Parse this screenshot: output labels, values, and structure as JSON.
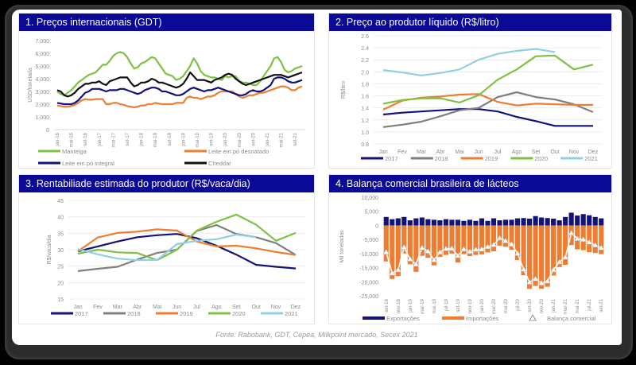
{
  "source_note": "Fonte: Rabobank, GDT, Cepea, Milkpoint mercado, Secex 2021",
  "colors": {
    "title_bar": "#0a0a96",
    "green": "#7dc242",
    "orange": "#ed7d31",
    "navy": "#12127a",
    "black": "#111111",
    "gray": "#7f7f7f",
    "lightblue": "#8fd0e2"
  },
  "chart_data": [
    {
      "type": "line",
      "title": "1. Preços internacionais (GDT)",
      "xlabel": "",
      "ylabel": "USD/tonelada",
      "ylim": [
        0,
        7000
      ],
      "yticks": [
        0,
        1000,
        2000,
        3000,
        4000,
        5000,
        6000,
        7000
      ],
      "ytick_labels": [
        "0",
        "1,000",
        "2,000",
        "3,000",
        "4,000",
        "5,000",
        "6,000",
        "7,000"
      ],
      "x_tick_labels": [
        "jan-16",
        "mai-16",
        "set-16",
        "jan-17",
        "mai-17",
        "set-17",
        "jan-18",
        "mai-18",
        "set-18",
        "jan-19",
        "mai-19",
        "set-19",
        "jan-20",
        "mai-20",
        "set-20",
        "jan-21",
        "mai-21",
        "set-21"
      ],
      "x_points_per_tick": 4,
      "grid": false,
      "legend": "bottom",
      "series": [
        {
          "name": "Manteiga",
          "color": "#7dc242",
          "values": [
            3000,
            2800,
            2700,
            2900,
            3100,
            3400,
            3700,
            3900,
            4100,
            4300,
            4400,
            4500,
            4800,
            5100,
            5100,
            5400,
            5800,
            6000,
            6100,
            6000,
            5700,
            5200,
            4800,
            4900,
            5200,
            5300,
            5500,
            5700,
            5600,
            5200,
            4800,
            4400,
            4300,
            4200,
            3900,
            4000,
            4200,
            4600,
            5000,
            5600,
            5200,
            4600,
            4300,
            4200,
            4100,
            4100,
            4000,
            3900,
            4200,
            4100,
            4200,
            4200,
            3800,
            3700,
            3700,
            3600,
            3500,
            3500,
            3800,
            4200,
            4600,
            5000,
            5600,
            5700,
            5300,
            4700,
            4500,
            4600,
            4800,
            4900,
            5000
          ]
        },
        {
          "name": "Leite em pó desnatado",
          "color": "#ed7d31",
          "values": [
            1900,
            1850,
            1800,
            1800,
            1850,
            1950,
            2100,
            2300,
            2400,
            2350,
            2350,
            2400,
            2400,
            2400,
            2000,
            2000,
            2100,
            2100,
            2000,
            1950,
            1850,
            1800,
            1750,
            1800,
            1900,
            1900,
            2000,
            2000,
            2100,
            2050,
            2000,
            2000,
            2000,
            2000,
            2100,
            2100,
            2100,
            2500,
            2600,
            2500,
            2500,
            2400,
            2500,
            2600,
            2600,
            2700,
            2900,
            3000,
            3000,
            3000,
            3000,
            2800,
            2600,
            2500,
            2600,
            2700,
            2700,
            2800,
            2900,
            2900,
            3000,
            3100,
            3200,
            3300,
            3400,
            3400,
            3300,
            3100,
            3100,
            3300,
            3400
          ]
        },
        {
          "name": "Leite em pó integral",
          "color": "#12127a",
          "values": [
            2100,
            2050,
            2000,
            2000,
            2000,
            2100,
            2300,
            2600,
            2900,
            3000,
            3200,
            3200,
            3200,
            3100,
            3000,
            3100,
            3100,
            3100,
            3200,
            3200,
            3100,
            3000,
            2900,
            2800,
            2900,
            3100,
            3200,
            3300,
            3300,
            3200,
            3000,
            3000,
            2900,
            2800,
            2700,
            2700,
            2800,
            3000,
            3200,
            3300,
            3200,
            3100,
            3000,
            3100,
            3100,
            3200,
            3300,
            3200,
            3100,
            3000,
            2900,
            2800,
            2700,
            2700,
            2800,
            3000,
            3100,
            3000,
            3000,
            3100,
            3300,
            3500,
            4000,
            4100,
            4100,
            4000,
            3800,
            3700,
            3700,
            3800,
            3900
          ]
        },
        {
          "name": "Cheddar",
          "color": "#111111",
          "values": [
            3100,
            3000,
            2700,
            2600,
            2700,
            2900,
            3200,
            3400,
            3600,
            3600,
            3700,
            3700,
            3800,
            3600,
            3500,
            3800,
            3900,
            4000,
            4100,
            4100,
            4100,
            3700,
            3400,
            3500,
            3700,
            3700,
            3800,
            4000,
            3900,
            3700,
            3700,
            3600,
            3500,
            3400,
            3300,
            3400,
            3600,
            4000,
            4500,
            4200,
            3900,
            3900,
            3900,
            3800,
            3700,
            3900,
            4000,
            4100,
            4300,
            4400,
            4300,
            4000,
            3800,
            3600,
            3500,
            3600,
            3700,
            3800,
            3900,
            4000,
            4100,
            4200,
            4300,
            4300,
            4300,
            4200,
            4100,
            4200,
            4300,
            4400,
            4500
          ]
        }
      ]
    },
    {
      "type": "line",
      "title": "2. Preço ao produtor líquido (R$/litro)",
      "xlabel": "",
      "ylabel": "R$/litro",
      "ylim": [
        0.8,
        2.6
      ],
      "yticks": [
        0.8,
        1.0,
        1.2,
        1.4,
        1.6,
        1.8,
        2.0,
        2.2,
        2.4,
        2.6
      ],
      "ytick_labels": [
        "0.8",
        "1.0",
        "1.2",
        "1.4",
        "1.6",
        "1.8",
        "2.0",
        "2.2",
        "2.4",
        "2.6"
      ],
      "categories": [
        "Jan",
        "Fev",
        "Mar",
        "Abr",
        "Mai",
        "Jun",
        "Jul",
        "Ago",
        "Set",
        "Out",
        "Nov",
        "Dez"
      ],
      "grid": true,
      "legend": "bottom",
      "series": [
        {
          "name": "2017",
          "color": "#12127a",
          "values": [
            1.29,
            1.32,
            1.34,
            1.36,
            1.38,
            1.38,
            1.34,
            1.25,
            1.18,
            1.1,
            1.1,
            1.1
          ]
        },
        {
          "name": "2018",
          "color": "#7f7f7f",
          "values": [
            1.08,
            1.12,
            1.17,
            1.26,
            1.36,
            1.4,
            1.58,
            1.66,
            1.58,
            1.54,
            1.46,
            1.33
          ]
        },
        {
          "name": "2019",
          "color": "#ed7d31",
          "values": [
            1.37,
            1.52,
            1.57,
            1.59,
            1.62,
            1.63,
            1.5,
            1.44,
            1.47,
            1.46,
            1.45,
            1.45
          ]
        },
        {
          "name": "2020",
          "color": "#7dc242",
          "values": [
            1.47,
            1.53,
            1.56,
            1.56,
            1.49,
            1.61,
            1.87,
            2.04,
            2.26,
            2.27,
            2.04,
            2.12
          ]
        },
        {
          "name": "2021",
          "color": "#8fd0e2",
          "values": [
            2.03,
            1.99,
            1.94,
            1.98,
            2.04,
            2.2,
            2.3,
            2.35,
            2.38,
            2.33,
            null,
            null
          ]
        }
      ]
    },
    {
      "type": "line",
      "title": "3. Rentabiliade estimada do produtor (R$/vaca/dia)",
      "xlabel": "",
      "ylabel": "R$/vaca/dia",
      "ylim": [
        15,
        45
      ],
      "yticks": [
        15,
        20,
        25,
        30,
        35,
        40,
        45
      ],
      "ytick_labels": [
        "15",
        "20",
        "25",
        "30",
        "35",
        "40",
        "45"
      ],
      "categories": [
        "Jan",
        "Fev",
        "Mar",
        "Abr",
        "Mai",
        "Jun",
        "Jul",
        "Ago",
        "Set",
        "Out",
        "Nov",
        "Dez"
      ],
      "grid": true,
      "legend": "bottom",
      "series": [
        {
          "name": "2017",
          "color": "#12127a",
          "values": [
            29.5,
            31,
            32.5,
            33.8,
            34.4,
            34.8,
            33.5,
            31.2,
            28.5,
            25.4,
            24.8,
            24.3
          ]
        },
        {
          "name": "2018",
          "color": "#7f7f7f",
          "values": [
            23.5,
            24.2,
            24.8,
            27,
            29,
            30,
            35.7,
            37.5,
            34.8,
            33.8,
            32,
            28.4
          ]
        },
        {
          "name": "2019",
          "color": "#ed7d31",
          "values": [
            29.5,
            33.7,
            35.1,
            35.5,
            36.2,
            35.8,
            32.5,
            31,
            31.2,
            30.4,
            29.3,
            28.4
          ]
        },
        {
          "name": "2020",
          "color": "#7dc242",
          "values": [
            28.8,
            30,
            29.2,
            29,
            26.8,
            30,
            35.8,
            38.5,
            40.7,
            37.6,
            32.7,
            35.1
          ]
        },
        {
          "name": "2021",
          "color": "#8fd0e2",
          "values": [
            30.2,
            28.6,
            27.3,
            26.8,
            26.9,
            31.7,
            32.7,
            33.2,
            34.6,
            33.8,
            null,
            null
          ]
        }
      ]
    },
    {
      "type": "bar",
      "title": "4. Balança comercial brasileira de lácteos",
      "xlabel": "",
      "ylabel": "Mil toneladas",
      "ylim": [
        -25000,
        10000
      ],
      "yticks": [
        -25000,
        -20000,
        -15000,
        -10000,
        -5000,
        0,
        5000,
        10000
      ],
      "ytick_labels": [
        "-25,000",
        "-20,000",
        "-15,000",
        "-10,000",
        "-5,000",
        "0",
        "5,000",
        "10,000"
      ],
      "x_tick_labels": [
        "set-18",
        "nov-18",
        "jan-19",
        "mar-19",
        "mai-19",
        "jul-19",
        "set-19",
        "nov-19",
        "jan-20",
        "mar-20",
        "mai-20",
        "jul-20",
        "set-20",
        "nov-20",
        "jan-21",
        "mar-21",
        "mai-21",
        "jul-21",
        "set-21"
      ],
      "grid": false,
      "legend": "bottom",
      "series": [
        {
          "name": "Exportações",
          "color": "#12127a",
          "values": [
            3000,
            2200,
            2500,
            3000,
            1800,
            2500,
            2800,
            2200,
            2000,
            1800,
            2200,
            2000,
            2000,
            1600,
            2000,
            1600,
            2500,
            1600,
            2500,
            1800,
            2000,
            2000,
            2500,
            2600,
            2400,
            3300,
            2800,
            2600,
            2400,
            1800,
            3000,
            4500,
            3500,
            4000,
            3600,
            3000,
            2500
          ]
        },
        {
          "name": "Importações",
          "color": "#ed7d31",
          "values": [
            -12800,
            -19000,
            -18000,
            -10000,
            -13800,
            -16500,
            -10800,
            -11500,
            -14200,
            -11200,
            -10500,
            -10000,
            -13200,
            -10200,
            -10900,
            -10500,
            -10300,
            -9600,
            -9200,
            -7200,
            -7600,
            -8700,
            -12300,
            -17700,
            -22500,
            -21500,
            -22500,
            -21800,
            -17800,
            -14800,
            -14000,
            -7000,
            -8500,
            -8800,
            -9500,
            -9800,
            -10200
          ]
        },
        {
          "name": "Balança comercial",
          "color": "#ffffff",
          "marker": "triangle",
          "values": [
            -9500,
            -17000,
            -15800,
            -7800,
            -12000,
            -13800,
            -8000,
            -9200,
            -12300,
            -9500,
            -8300,
            -8200,
            -10800,
            -8400,
            -9300,
            -8600,
            -8500,
            -7600,
            -6900,
            -4500,
            -5500,
            -6700,
            -10000,
            -15600,
            -20200,
            -19000,
            -20500,
            -19800,
            -15800,
            -13000,
            -11300,
            -2700,
            -4700,
            -5000,
            -6000,
            -7000,
            -8000
          ]
        }
      ]
    }
  ]
}
